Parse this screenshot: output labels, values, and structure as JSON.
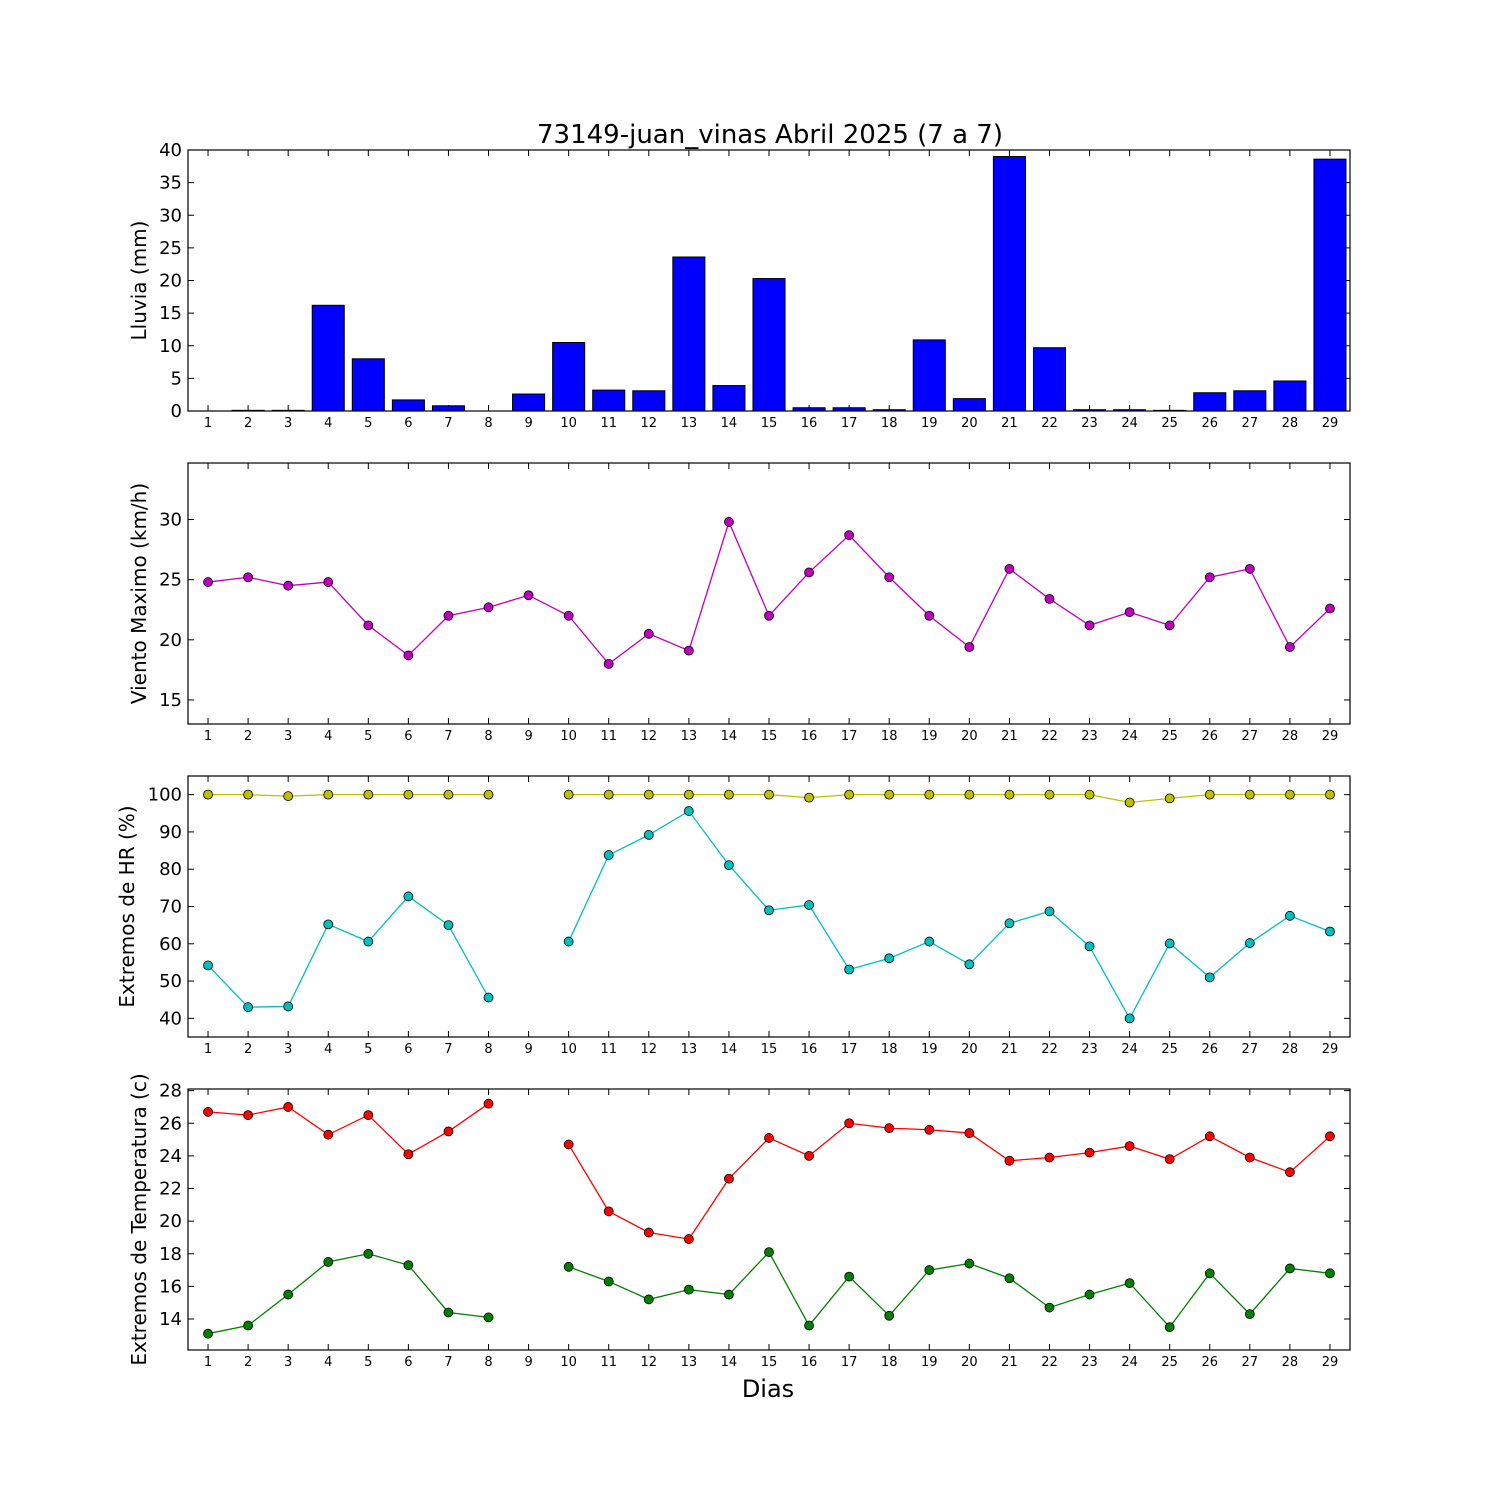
{
  "chart_data": [
    {
      "type": "bar",
      "title": "73149-juan_vinas Abril 2025  (7 a 7)",
      "ylabel": "Lluvia (mm)",
      "x": [
        1,
        2,
        3,
        4,
        5,
        6,
        7,
        8,
        9,
        10,
        11,
        12,
        13,
        14,
        15,
        16,
        17,
        18,
        19,
        20,
        21,
        22,
        23,
        24,
        25,
        26,
        27,
        28,
        29
      ],
      "ylim": [
        0,
        40
      ],
      "yticks": [
        0,
        5,
        10,
        15,
        20,
        25,
        30,
        35,
        40
      ],
      "series": [
        {
          "color": "#0000ff",
          "values": [
            0,
            0.1,
            0.1,
            16.2,
            8.0,
            1.7,
            0.8,
            0,
            2.6,
            10.5,
            3.2,
            3.1,
            23.6,
            3.9,
            20.3,
            0.5,
            0.5,
            0.2,
            10.9,
            1.9,
            39.0,
            9.7,
            0.2,
            0.2,
            0.1,
            2.8,
            3.1,
            4.6,
            38.6
          ]
        }
      ]
    },
    {
      "type": "line",
      "ylabel": "Viento Maximo (km/h)",
      "x": [
        1,
        2,
        3,
        4,
        5,
        6,
        7,
        8,
        9,
        10,
        11,
        12,
        13,
        14,
        15,
        16,
        17,
        18,
        19,
        20,
        21,
        22,
        23,
        24,
        25,
        26,
        27,
        28,
        29
      ],
      "ylim": [
        13,
        34.7
      ],
      "yticks": [
        15,
        20,
        25,
        30
      ],
      "series": [
        {
          "color": "#bf00bf",
          "values": [
            24.8,
            25.2,
            24.5,
            24.8,
            21.2,
            18.7,
            22.0,
            22.7,
            23.7,
            22.0,
            18.0,
            20.5,
            19.1,
            29.8,
            22.0,
            25.6,
            28.7,
            25.2,
            22.0,
            19.4,
            25.9,
            23.4,
            21.2,
            22.3,
            21.2,
            25.2,
            25.9,
            19.4,
            22.6
          ]
        }
      ]
    },
    {
      "type": "line",
      "ylabel": "Extremos de HR (%)",
      "x": [
        1,
        2,
        3,
        4,
        5,
        6,
        7,
        8,
        9,
        10,
        11,
        12,
        13,
        14,
        15,
        16,
        17,
        18,
        19,
        20,
        21,
        22,
        23,
        24,
        25,
        26,
        27,
        28,
        29
      ],
      "ylim": [
        35,
        105
      ],
      "yticks": [
        40,
        50,
        60,
        70,
        80,
        90,
        100
      ],
      "series": [
        {
          "color": "#bfbf00",
          "values": [
            100,
            100,
            99.6,
            100,
            100,
            100,
            100,
            100,
            null,
            100,
            100,
            100,
            100,
            100,
            100,
            99.2,
            100,
            100,
            100,
            100,
            100,
            100,
            100,
            97.9,
            99.0,
            100,
            100,
            100,
            100
          ]
        },
        {
          "color": "#00bfbf",
          "values": [
            54.2,
            43.0,
            43.2,
            65.2,
            60.6,
            72.7,
            65.0,
            45.6,
            null,
            60.6,
            83.8,
            89.2,
            95.6,
            81.1,
            69.0,
            70.4,
            53.1,
            56.1,
            60.6,
            54.5,
            65.5,
            68.7,
            59.3,
            40.0,
            60.1,
            51.0,
            60.2,
            67.5,
            63.3
          ]
        }
      ]
    },
    {
      "type": "line",
      "ylabel": "Extremos de Temperatura (c)",
      "xlabel": "Dias",
      "x": [
        1,
        2,
        3,
        4,
        5,
        6,
        7,
        8,
        9,
        10,
        11,
        12,
        13,
        14,
        15,
        16,
        17,
        18,
        19,
        20,
        21,
        22,
        23,
        24,
        25,
        26,
        27,
        28,
        29
      ],
      "ylim": [
        12.1,
        28.1
      ],
      "yticks": [
        14,
        16,
        18,
        20,
        22,
        24,
        26,
        28
      ],
      "series": [
        {
          "color": "#ff0000",
          "values": [
            26.7,
            26.5,
            27.0,
            25.3,
            26.5,
            24.1,
            25.5,
            27.2,
            null,
            24.7,
            20.6,
            19.3,
            18.9,
            22.6,
            25.1,
            24.0,
            26.0,
            25.7,
            25.6,
            25.4,
            23.7,
            23.9,
            24.2,
            24.6,
            23.8,
            25.2,
            23.9,
            23.0,
            25.2
          ]
        },
        {
          "color": "#008000",
          "values": [
            13.1,
            13.6,
            15.5,
            17.5,
            18.0,
            17.3,
            14.4,
            14.1,
            null,
            17.2,
            16.3,
            15.2,
            15.8,
            15.5,
            18.1,
            13.6,
            16.6,
            14.2,
            17.0,
            17.4,
            16.5,
            14.7,
            15.5,
            16.2,
            13.5,
            16.8,
            14.3,
            17.1,
            16.8
          ]
        }
      ]
    }
  ]
}
